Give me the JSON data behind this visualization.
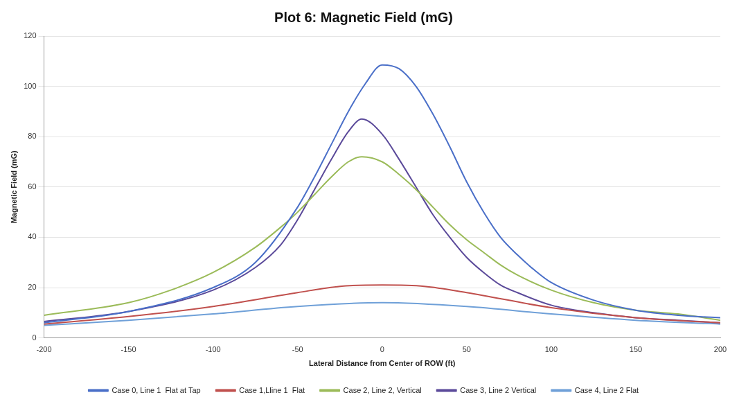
{
  "chart_data": {
    "type": "line",
    "title": "Plot 6: Magnetic Field (mG)",
    "xlabel": "Lateral Distance from Center of ROW (ft)",
    "ylabel": "Magnetic Field (mG)",
    "xlim": [
      -200,
      200
    ],
    "xticks": [
      -200,
      -150,
      -100,
      -50,
      0,
      50,
      100,
      150,
      200
    ],
    "ylim": [
      0,
      120
    ],
    "yticks": [
      0,
      20,
      40,
      60,
      80,
      100,
      120
    ],
    "grid": "y",
    "legend": "bottom",
    "marker": "none",
    "line_style": "solid",
    "series": [
      {
        "name": "Case 0, Line 1  Flat at Tap",
        "color": "#4a6fc8",
        "x": [
          -200,
          -150,
          -100,
          -75,
          -50,
          -40,
          -30,
          -20,
          -10,
          0,
          10,
          20,
          30,
          40,
          50,
          60,
          70,
          80,
          90,
          100,
          125,
          150,
          175,
          200
        ],
        "values": [
          6,
          10.5,
          20,
          30,
          52,
          64,
          77,
          90,
          101,
          108.5,
          107,
          100,
          89,
          76,
          62,
          50,
          40,
          33,
          27,
          22,
          15,
          11,
          9,
          8
        ]
      },
      {
        "name": "Case 1,Lline 1  Flat",
        "color": "#c0504d",
        "x": [
          -200,
          -150,
          -100,
          -50,
          -25,
          0,
          25,
          50,
          100,
          150,
          200
        ],
        "values": [
          5.5,
          8.5,
          12.5,
          18,
          20.5,
          21,
          20.5,
          18,
          12,
          8,
          6
        ]
      },
      {
        "name": "Case 2, Line 2, Vertical",
        "color": "#9bbb59",
        "x": [
          -200,
          -150,
          -125,
          -100,
          -75,
          -60,
          -50,
          -40,
          -30,
          -20,
          -12,
          0,
          10,
          20,
          30,
          40,
          50,
          60,
          70,
          80,
          100,
          125,
          150,
          175,
          200
        ],
        "values": [
          9,
          14,
          19,
          26,
          36,
          44,
          50,
          57,
          64,
          70,
          72,
          70,
          65,
          59,
          52,
          45,
          39,
          34,
          29,
          25,
          19,
          14,
          11,
          9.5,
          7
        ]
      },
      {
        "name": "Case 3, Line 2 Vertical",
        "color": "#5b4a9a",
        "x": [
          -200,
          -150,
          -100,
          -75,
          -60,
          -50,
          -40,
          -30,
          -20,
          -12,
          0,
          10,
          20,
          30,
          40,
          50,
          60,
          70,
          80,
          100,
          125,
          150,
          175,
          200
        ],
        "values": [
          6.5,
          10.5,
          19,
          28,
          37,
          47,
          59,
          71,
          82,
          87,
          81,
          71,
          60,
          49,
          40,
          32,
          26,
          21,
          18,
          13,
          10,
          8,
          7,
          6
        ]
      },
      {
        "name": "Case 4, Line 2 Flat",
        "color": "#6fa0d8",
        "x": [
          -200,
          -150,
          -100,
          -50,
          0,
          50,
          100,
          150,
          200
        ],
        "values": [
          5,
          7,
          9.5,
          12.5,
          14,
          12.5,
          9.5,
          7,
          5.5
        ]
      }
    ]
  }
}
